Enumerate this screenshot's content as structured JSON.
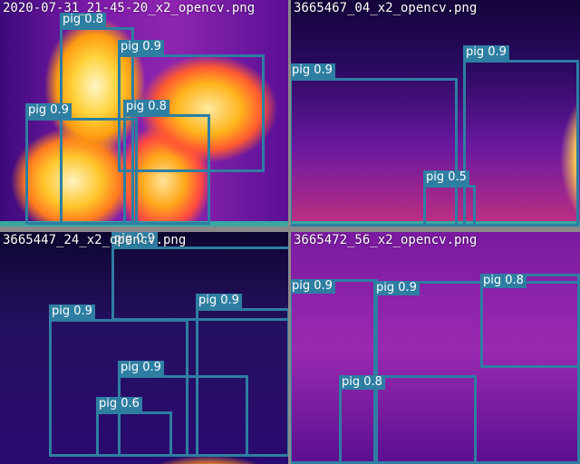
{
  "tiles": [
    {
      "name": "2020-07-31_21-45-20_x2_opencv.png",
      "detections": [
        "pig 0.8",
        "pig 0.9",
        "pig 0.9",
        "pig 0.8"
      ]
    },
    {
      "name": "3665467_04_x2_opencv.png",
      "detections": [
        "pig 0.9",
        "pig 0.9",
        "pig 0.5"
      ]
    },
    {
      "name": "3665447_24_x2_opencv.png",
      "detections": [
        "pig 0.9",
        "pig 0.9",
        "pig 0.9",
        "pig 0.9",
        "pig 0.6"
      ]
    },
    {
      "name": "3665472_56_x2_opencv.png",
      "detections": [
        "pig 0.9",
        "pig 0.9",
        "pig 0.8",
        "pig 0.8"
      ]
    }
  ],
  "colors": {
    "box": "#2e7ea2",
    "label_text": "#ffffff",
    "strip": "#3aa7a0",
    "background": "#7f7f7f"
  }
}
